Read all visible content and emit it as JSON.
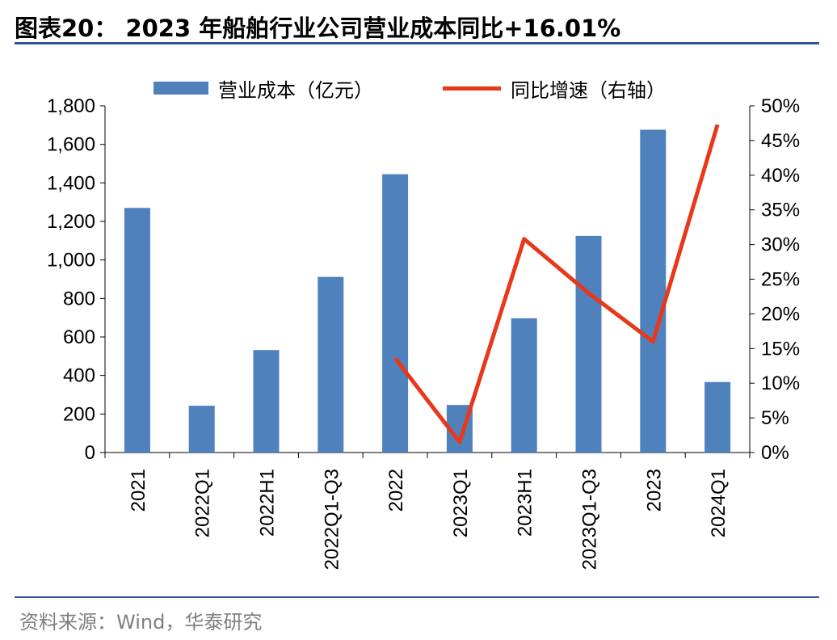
{
  "header": {
    "title": "图表20： 2023 年船舶行业公司营业成本同比+16.01%"
  },
  "footer": {
    "source": "资料来源：Wind，华泰研究"
  },
  "colors": {
    "bar": "#4f81bd",
    "line": "#e8381a",
    "rule": "#2e5597"
  },
  "chart_data": {
    "type": "bar",
    "categories": [
      "2021",
      "2022Q1",
      "2022H1",
      "2022Q1-Q3",
      "2022",
      "2023Q1",
      "2023H1",
      "2023Q1-Q3",
      "2023",
      "2024Q1"
    ],
    "series": [
      {
        "name": "营业成本（亿元）",
        "type": "bar",
        "axis": "left",
        "values": [
          1270,
          243,
          532,
          912,
          1445,
          247,
          697,
          1125,
          1676,
          366
        ]
      },
      {
        "name": "同比增速（右轴）",
        "type": "line",
        "axis": "right",
        "values": [
          null,
          null,
          null,
          null,
          13.6,
          1.5,
          30.8,
          23.0,
          16.0,
          47.3
        ]
      }
    ],
    "y_left": {
      "min": 0,
      "max": 1800,
      "step": 200,
      "tick_labels": [
        "0",
        "200",
        "400",
        "600",
        "800",
        "1,000",
        "1,200",
        "1,400",
        "1,600",
        "1,800"
      ]
    },
    "y_right": {
      "min": 0,
      "max": 50,
      "step": 5,
      "tick_labels": [
        "0%",
        "5%",
        "10%",
        "15%",
        "20%",
        "25%",
        "30%",
        "35%",
        "40%",
        "45%",
        "50%"
      ]
    },
    "grid": false,
    "legend_position": "top"
  }
}
